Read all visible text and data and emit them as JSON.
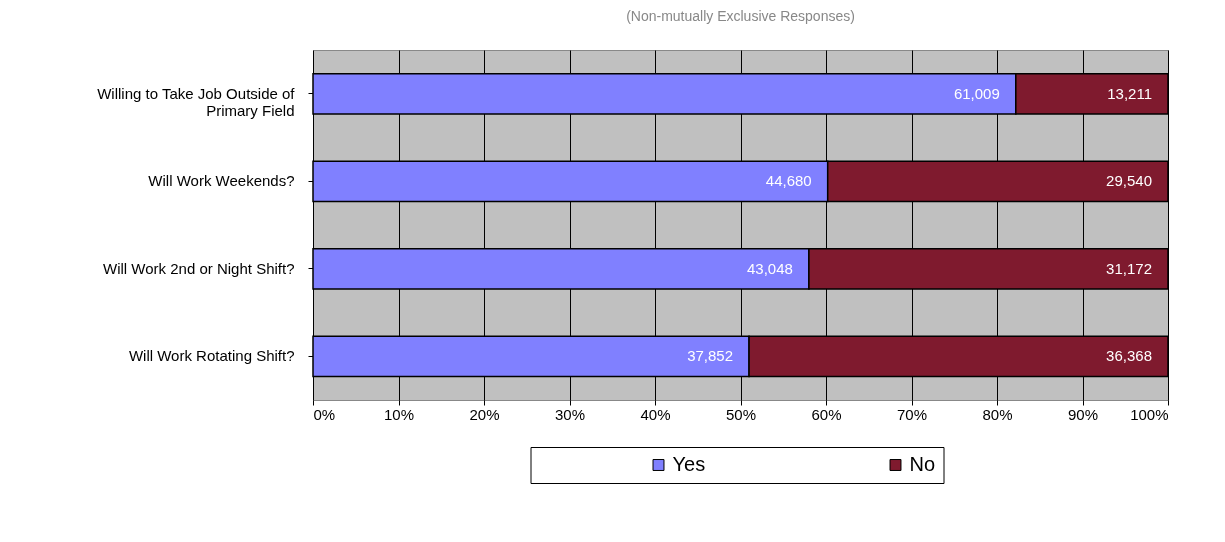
{
  "chart_data": {
    "type": "bar",
    "orientation": "horizontal",
    "stacked": true,
    "subtitle": "(Non-mutually Exclusive Responses)",
    "categories": [
      "Willing to Take Job Outside of Primary Field",
      "Will Work Weekends?",
      "Will Work 2nd or Night Shift?",
      "Will Work Rotating Shift?"
    ],
    "series": [
      {
        "name": "Yes",
        "color": "#8080ff",
        "values": [
          82.2,
          60.2,
          58.0,
          51.0
        ]
      },
      {
        "name": "No",
        "color": "#7f1a2e",
        "values": [
          17.8,
          39.8,
          42.0,
          49.0
        ]
      }
    ],
    "annotations": [
      {
        "text": "61,009",
        "x": 82.2,
        "y": "Willing to Take Job Outside of Primary Field"
      },
      {
        "text": "13,211",
        "x": 100,
        "y": "Willing to Take Job Outside of Primary Field"
      },
      {
        "text": "44,680",
        "x": 60.2,
        "y": "Will Work Weekends?"
      },
      {
        "text": "29,540",
        "x": 100,
        "y": "Will Work Weekends?"
      },
      {
        "text": "43,048",
        "x": 58.0,
        "y": "Will Work 2nd or Night Shift?"
      },
      {
        "text": "31,172",
        "x": 100,
        "y": "Will Work 2nd or Night Shift?"
      },
      {
        "text": "37,852",
        "x": 51.0,
        "y": "Will Work Rotating Shift?"
      },
      {
        "text": "36,368",
        "x": 100,
        "y": "Will Work Rotating Shift?"
      }
    ],
    "xlim": [
      0,
      100
    ],
    "xticks": [
      {
        "value": 0,
        "label": "0%"
      },
      {
        "value": 10,
        "label": "10%"
      },
      {
        "value": 20,
        "label": "20%"
      },
      {
        "value": 30,
        "label": "30%"
      },
      {
        "value": 40,
        "label": "40%"
      },
      {
        "value": 50,
        "label": "50%"
      },
      {
        "value": 60,
        "label": "60%"
      },
      {
        "value": 70,
        "label": "70%"
      },
      {
        "value": 80,
        "label": "80%"
      },
      {
        "value": 90,
        "label": "90%"
      },
      {
        "value": 100,
        "label": "100%"
      }
    ],
    "grid": "x",
    "legend": "bottom"
  }
}
